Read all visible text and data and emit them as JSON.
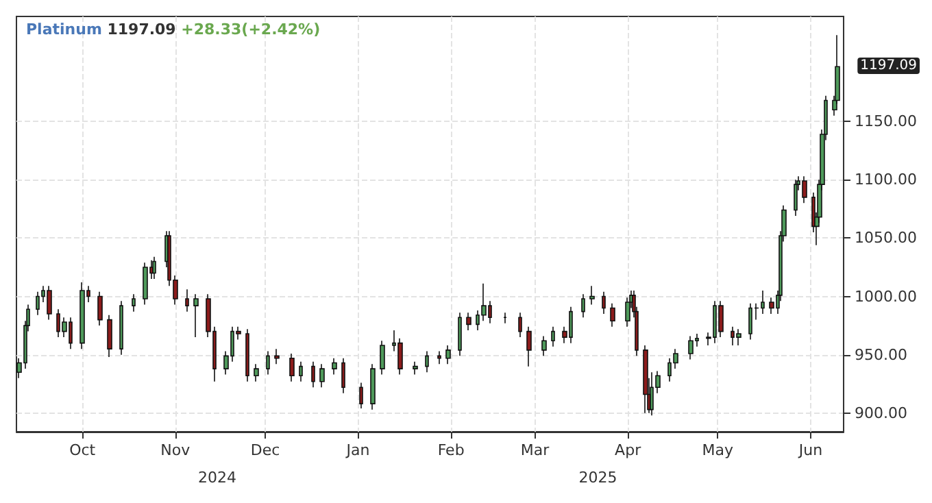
{
  "chart_data": {
    "type": "candlestick",
    "title": "Platinum 1197.09",
    "subtitle": "+28.33(+2.42%)",
    "x": [
      "2024-09-10",
      "2024-09-12",
      "2024-09-13",
      "2024-09-16",
      "2024-09-18",
      "2024-09-20",
      "2024-09-23",
      "2024-09-25",
      "2024-09-27",
      "2024-10-01",
      "2024-10-03",
      "2024-10-07",
      "2024-10-10",
      "2024-10-14",
      "2024-10-18",
      "2024-10-22",
      "2024-10-24",
      "2024-10-25",
      "2024-10-29",
      "2024-10-30",
      "2024-11-01",
      "2024-11-05",
      "2024-11-08",
      "2024-11-12",
      "2024-11-14",
      "2024-11-18",
      "2024-11-20",
      "2024-11-22",
      "2024-11-25",
      "2024-11-28",
      "2024-12-02",
      "2024-12-05",
      "2024-12-10",
      "2024-12-13",
      "2024-12-17",
      "2024-12-20",
      "2024-12-24",
      "2024-12-27",
      "2025-01-02",
      "2025-01-06",
      "2025-01-09",
      "2025-01-13",
      "2025-01-15",
      "2025-01-20",
      "2025-01-24",
      "2025-01-28",
      "2025-01-31",
      "2025-02-04",
      "2025-02-07",
      "2025-02-10",
      "2025-02-12",
      "2025-02-14",
      "2025-02-19",
      "2025-02-24",
      "2025-02-27",
      "2025-03-04",
      "2025-03-07",
      "2025-03-11",
      "2025-03-13",
      "2025-03-17",
      "2025-03-20",
      "2025-03-24",
      "2025-03-27",
      "2025-04-01",
      "2025-04-02",
      "2025-04-03",
      "2025-04-04",
      "2025-04-07",
      "2025-04-08",
      "2025-04-09",
      "2025-04-11",
      "2025-04-15",
      "2025-04-17",
      "2025-04-22",
      "2025-04-24",
      "2025-04-28",
      "2025-04-30",
      "2025-05-02",
      "2025-05-06",
      "2025-05-08",
      "2025-05-12",
      "2025-05-14",
      "2025-05-16",
      "2025-05-19",
      "2025-05-21",
      "2025-05-22",
      "2025-05-23",
      "2025-05-27",
      "2025-05-28",
      "2025-05-30",
      "2025-06-02",
      "2025-06-03",
      "2025-06-04",
      "2025-06-05",
      "2025-06-06",
      "2025-06-09",
      "2025-06-10"
    ],
    "ohlc": [
      [
        935,
        947,
        930,
        943
      ],
      [
        943,
        979,
        938,
        975
      ],
      [
        975,
        993,
        970,
        989
      ],
      [
        989,
        1004,
        984,
        1000
      ],
      [
        1000,
        1009,
        995,
        1005
      ],
      [
        1005,
        1009,
        980,
        985
      ],
      [
        985,
        989,
        965,
        970
      ],
      [
        970,
        982,
        965,
        978
      ],
      [
        978,
        982,
        955,
        960
      ],
      [
        960,
        1012,
        955,
        1005
      ],
      [
        1005,
        1009,
        995,
        1000
      ],
      [
        1000,
        1004,
        975,
        980
      ],
      [
        980,
        984,
        948,
        955
      ],
      [
        955,
        996,
        950,
        992
      ],
      [
        992,
        1002,
        987,
        998
      ],
      [
        998,
        1029,
        993,
        1025
      ],
      [
        1025,
        1031,
        1015,
        1020
      ],
      [
        1020,
        1034,
        1015,
        1030
      ],
      [
        1030,
        1056,
        1025,
        1052
      ],
      [
        1052,
        1056,
        1009,
        1014
      ],
      [
        1014,
        1018,
        993,
        998
      ],
      [
        998,
        1006,
        987,
        992
      ],
      [
        992,
        1002,
        965,
        998
      ],
      [
        998,
        1002,
        965,
        970
      ],
      [
        970,
        974,
        927,
        938
      ],
      [
        938,
        953,
        933,
        949
      ],
      [
        949,
        974,
        944,
        970
      ],
      [
        970,
        974,
        963,
        968
      ],
      [
        968,
        972,
        927,
        932
      ],
      [
        932,
        942,
        927,
        938
      ],
      [
        938,
        953,
        933,
        949
      ],
      [
        949,
        955,
        942,
        947
      ],
      [
        947,
        951,
        927,
        932
      ],
      [
        932,
        944,
        927,
        940
      ],
      [
        940,
        944,
        922,
        927
      ],
      [
        927,
        942,
        922,
        938
      ],
      [
        938,
        947,
        933,
        943
      ],
      [
        943,
        947,
        917,
        922
      ],
      [
        922,
        926,
        904,
        908
      ],
      [
        908,
        942,
        903,
        938
      ],
      [
        938,
        962,
        933,
        958
      ],
      [
        958,
        971,
        953,
        960
      ],
      [
        960,
        964,
        933,
        938
      ],
      [
        938,
        944,
        933,
        940
      ],
      [
        940,
        953,
        935,
        949
      ],
      [
        949,
        953,
        942,
        947
      ],
      [
        947,
        958,
        942,
        954
      ],
      [
        954,
        986,
        949,
        982
      ],
      [
        982,
        986,
        971,
        976
      ],
      [
        976,
        988,
        971,
        984
      ],
      [
        984,
        1011,
        979,
        992
      ],
      [
        992,
        996,
        977,
        982
      ],
      [
        982,
        986,
        977,
        982
      ],
      [
        982,
        986,
        965,
        970
      ],
      [
        970,
        974,
        940,
        954
      ],
      [
        954,
        966,
        949,
        962
      ],
      [
        962,
        974,
        957,
        970
      ],
      [
        970,
        974,
        960,
        965
      ],
      [
        965,
        991,
        960,
        987
      ],
      [
        987,
        1002,
        982,
        998
      ],
      [
        998,
        1009,
        993,
        1000
      ],
      [
        1000,
        1004,
        985,
        990
      ],
      [
        990,
        994,
        974,
        979
      ],
      [
        979,
        999,
        974,
        995
      ],
      [
        995,
        1005,
        990,
        1001
      ],
      [
        1001,
        1005,
        982,
        987
      ],
      [
        987,
        991,
        949,
        954
      ],
      [
        954,
        958,
        900,
        916
      ],
      [
        916,
        930,
        900,
        903
      ],
      [
        903,
        935,
        898,
        922
      ],
      [
        922,
        936,
        917,
        932
      ],
      [
        932,
        947,
        927,
        943
      ],
      [
        943,
        955,
        938,
        951
      ],
      [
        951,
        966,
        946,
        962
      ],
      [
        962,
        968,
        957,
        964
      ],
      [
        964,
        969,
        958,
        965
      ],
      [
        965,
        996,
        960,
        992
      ],
      [
        992,
        996,
        965,
        970
      ],
      [
        970,
        974,
        958,
        965
      ],
      [
        965,
        972,
        958,
        968
      ],
      [
        968,
        994,
        963,
        990
      ],
      [
        990,
        994,
        980,
        990
      ],
      [
        990,
        1005,
        985,
        995
      ],
      [
        995,
        999,
        985,
        990
      ],
      [
        990,
        1005,
        985,
        1001
      ],
      [
        1001,
        1056,
        996,
        1052
      ],
      [
        1052,
        1078,
        1047,
        1074
      ],
      [
        1074,
        1100,
        1069,
        1096
      ],
      [
        1096,
        1103,
        1091,
        1099
      ],
      [
        1099,
        1103,
        1080,
        1085
      ],
      [
        1085,
        1089,
        1055,
        1060
      ],
      [
        1060,
        1072,
        1044,
        1068
      ],
      [
        1068,
        1100,
        1063,
        1096
      ],
      [
        1096,
        1143,
        1091,
        1139
      ],
      [
        1139,
        1172,
        1134,
        1168
      ],
      [
        1160,
        1172,
        1155,
        1168
      ],
      [
        1168,
        1224,
        1165,
        1197
      ]
    ],
    "xlim": [
      "2024-09-09",
      "2025-06-12"
    ],
    "xticks": [
      {
        "value": "2024-10-01",
        "label": "Oct"
      },
      {
        "value": "2024-11-01",
        "label": "Nov"
      },
      {
        "value": "2024-12-01",
        "label": "Dec"
      },
      {
        "value": "2025-01-01",
        "label": "Jan"
      },
      {
        "value": "2025-02-01",
        "label": "Feb"
      },
      {
        "value": "2025-03-01",
        "label": "Mar"
      },
      {
        "value": "2025-04-01",
        "label": "Apr"
      },
      {
        "value": "2025-05-01",
        "label": "May"
      },
      {
        "value": "2025-06-01",
        "label": "Jun"
      }
    ],
    "x2lim": [
      "2024-09-09",
      "2025-06-12"
    ],
    "x2ticks": [
      {
        "value": "2024-11-15",
        "label": "2024"
      },
      {
        "value": "2025-03-22",
        "label": "2025"
      }
    ],
    "ylim": [
      884,
      1240
    ],
    "yticks": [
      {
        "value": 900,
        "label": "900.00"
      },
      {
        "value": 950,
        "label": "950.00"
      },
      {
        "value": 1000,
        "label": "1000.00"
      },
      {
        "value": 1050,
        "label": "1050.00"
      },
      {
        "value": 1100,
        "label": "1100.00"
      },
      {
        "value": 1150,
        "label": "1150.00"
      }
    ],
    "annotations": [
      "1197.09"
    ],
    "grid": true
  }
}
